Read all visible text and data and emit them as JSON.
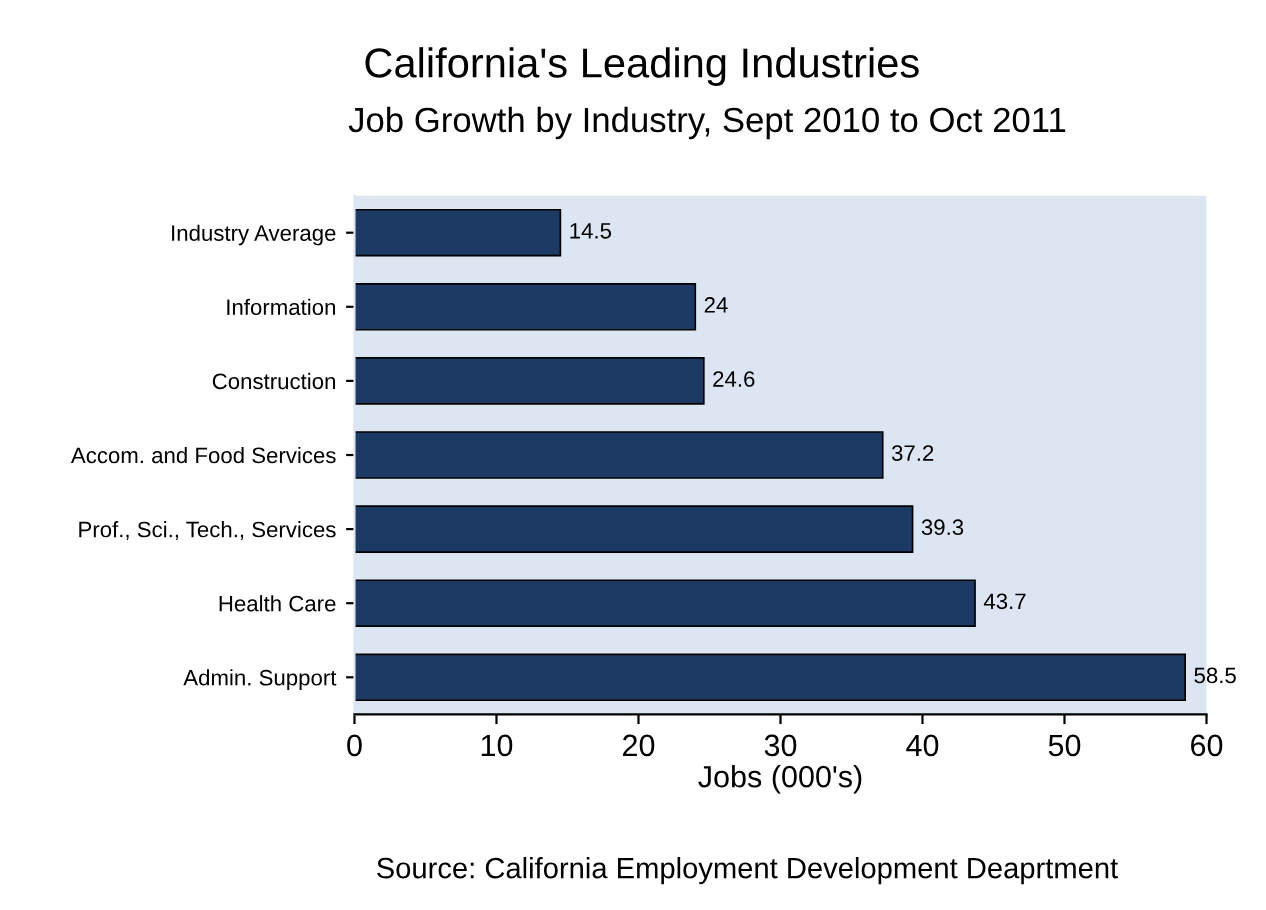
{
  "chart_data": {
    "type": "bar",
    "orientation": "horizontal",
    "title": "California's Leading Industries",
    "subtitle": "Job Growth by Industry, Sept 2010 to Oct 2011",
    "xlabel": "Jobs (000's)",
    "annotations": [
      "Source: California Employment Development Deaprtment"
    ],
    "categories": [
      "Industry Average",
      "Information",
      "Construction",
      "Accom. and Food Services",
      "Prof., Sci., Tech., Services",
      "Health Care",
      "Admin. Support"
    ],
    "values": [
      14.5,
      24,
      24.6,
      37.2,
      39.3,
      43.7,
      58.5
    ],
    "color": "#1c3a63",
    "data_labels": true,
    "xlim": [
      0,
      60
    ],
    "xticks": [
      0,
      10,
      20,
      30,
      40,
      50,
      60
    ],
    "grid": false,
    "legend": false
  }
}
